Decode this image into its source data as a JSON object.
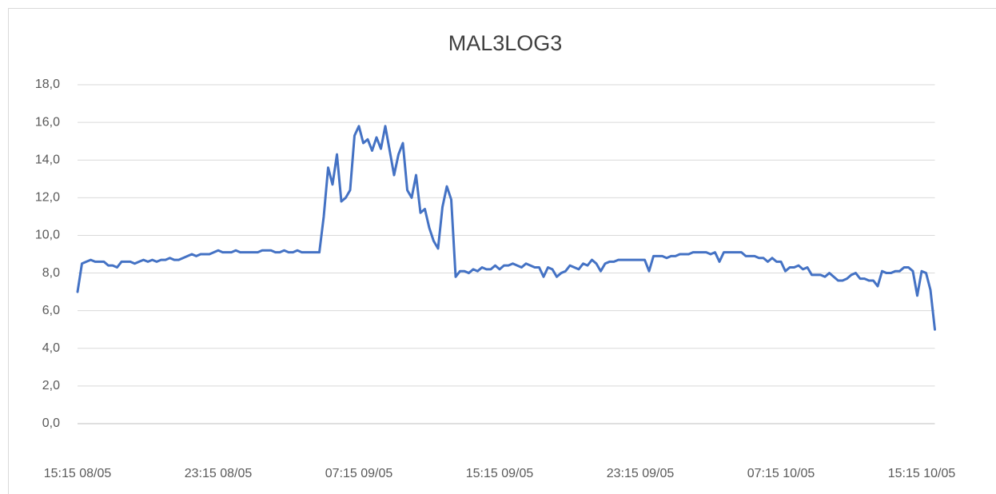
{
  "chart_data": {
    "type": "line",
    "title": "MAL3LOG3",
    "categories": [
      "15:15 08/05",
      null,
      null,
      null,
      null,
      null,
      null,
      null,
      null,
      null,
      null,
      null,
      null,
      null,
      null,
      null,
      null,
      null,
      null,
      null,
      null,
      null,
      null,
      null,
      null,
      null,
      null,
      null,
      null,
      null,
      null,
      null,
      "23:15 08/05",
      null,
      null,
      null,
      null,
      null,
      null,
      null,
      null,
      null,
      null,
      null,
      null,
      null,
      null,
      null,
      null,
      null,
      null,
      null,
      null,
      null,
      null,
      null,
      null,
      null,
      null,
      null,
      null,
      null,
      null,
      null,
      "07:15 09/05",
      null,
      null,
      null,
      null,
      null,
      null,
      null,
      null,
      null,
      null,
      null,
      null,
      null,
      null,
      null,
      null,
      null,
      null,
      null,
      null,
      null,
      null,
      null,
      null,
      null,
      null,
      null,
      null,
      null,
      null,
      null,
      "15:15 09/05",
      null,
      null,
      null,
      null,
      null,
      null,
      null,
      null,
      null,
      null,
      null,
      null,
      null,
      null,
      null,
      null,
      null,
      null,
      null,
      null,
      null,
      null,
      null,
      null,
      null,
      null,
      null,
      null,
      null,
      null,
      null,
      "23:15 09/05",
      null,
      null,
      null,
      null,
      null,
      null,
      null,
      null,
      null,
      null,
      null,
      null,
      null,
      null,
      null,
      null,
      null,
      null,
      null,
      null,
      null,
      null,
      null,
      null,
      null,
      null,
      null,
      null,
      null,
      null,
      null,
      "07:15 10/05",
      null,
      null,
      null,
      null,
      null,
      null,
      null,
      null,
      null,
      null,
      null,
      null,
      null,
      null,
      null,
      null,
      null,
      null,
      null,
      null,
      null,
      null,
      null,
      null,
      null,
      null,
      null,
      null,
      null,
      null,
      null,
      "15:15 10/05",
      null,
      null,
      null
    ],
    "series": [
      {
        "color": "#4472c4",
        "values": [
          7.0,
          8.5,
          8.6,
          8.7,
          8.6,
          8.6,
          8.6,
          8.4,
          8.4,
          8.3,
          8.6,
          8.6,
          8.6,
          8.5,
          8.6,
          8.7,
          8.6,
          8.7,
          8.6,
          8.7,
          8.7,
          8.8,
          8.7,
          8.7,
          8.8,
          8.9,
          9.0,
          8.9,
          9.0,
          9.0,
          9.0,
          9.1,
          9.2,
          9.1,
          9.1,
          9.1,
          9.2,
          9.1,
          9.1,
          9.1,
          9.1,
          9.1,
          9.2,
          9.2,
          9.2,
          9.1,
          9.1,
          9.2,
          9.1,
          9.1,
          9.2,
          9.1,
          9.1,
          9.1,
          9.1,
          9.1,
          11.0,
          13.6,
          12.7,
          14.3,
          11.8,
          12.0,
          12.4,
          15.3,
          15.8,
          14.9,
          15.1,
          14.5,
          15.2,
          14.6,
          15.8,
          14.5,
          13.2,
          14.3,
          14.9,
          12.4,
          12.0,
          13.2,
          11.2,
          11.4,
          10.4,
          9.7,
          9.3,
          11.5,
          12.6,
          11.9,
          7.8,
          8.1,
          8.1,
          8.0,
          8.2,
          8.1,
          8.3,
          8.2,
          8.2,
          8.4,
          8.2,
          8.4,
          8.4,
          8.5,
          8.4,
          8.3,
          8.5,
          8.4,
          8.3,
          8.3,
          7.8,
          8.3,
          8.2,
          7.8,
          8.0,
          8.1,
          8.4,
          8.3,
          8.2,
          8.5,
          8.4,
          8.7,
          8.5,
          8.1,
          8.5,
          8.6,
          8.6,
          8.7,
          8.7,
          8.7,
          8.7,
          8.7,
          8.7,
          8.7,
          8.1,
          8.9,
          8.9,
          8.9,
          8.8,
          8.9,
          8.9,
          9.0,
          9.0,
          9.0,
          9.1,
          9.1,
          9.1,
          9.1,
          9.0,
          9.1,
          8.6,
          9.1,
          9.1,
          9.1,
          9.1,
          9.1,
          8.9,
          8.9,
          8.9,
          8.8,
          8.8,
          8.6,
          8.8,
          8.6,
          8.6,
          8.1,
          8.3,
          8.3,
          8.4,
          8.2,
          8.3,
          7.9,
          7.9,
          7.9,
          7.8,
          8.0,
          7.8,
          7.6,
          7.6,
          7.7,
          7.9,
          8.0,
          7.7,
          7.7,
          7.6,
          7.6,
          7.3,
          8.1,
          8.0,
          8.0,
          8.1,
          8.1,
          8.3,
          8.3,
          8.1,
          6.8,
          8.1,
          8.0,
          7.1,
          5.0
        ]
      }
    ],
    "ylim": [
      0,
      18
    ],
    "yticks": [
      {
        "value": 0,
        "label": "0,0"
      },
      {
        "value": 2,
        "label": "2,0"
      },
      {
        "value": 4,
        "label": "4,0"
      },
      {
        "value": 6,
        "label": "6,0"
      },
      {
        "value": 8,
        "label": "8,0"
      },
      {
        "value": 10,
        "label": "10,0"
      },
      {
        "value": 12,
        "label": "12,0"
      },
      {
        "value": 14,
        "label": "14,0"
      },
      {
        "value": 16,
        "label": "16,0"
      },
      {
        "value": 18,
        "label": "18,0"
      }
    ],
    "grid": true
  }
}
